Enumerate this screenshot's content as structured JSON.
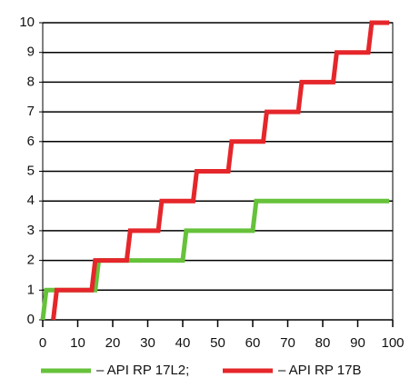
{
  "chart_data": {
    "type": "line",
    "series": [
      {
        "name": "– API RP 17L2;",
        "color": "#66c23a",
        "x": [
          0,
          1,
          15,
          16,
          40,
          41,
          60,
          61,
          99
        ],
        "values": [
          0,
          1,
          1,
          2,
          2,
          3,
          3,
          4,
          4
        ]
      },
      {
        "name": "– API RP 17B",
        "color": "#e5262a",
        "x": [
          3,
          4,
          14,
          15,
          24,
          25,
          33,
          34,
          43,
          44,
          53,
          54,
          63,
          64,
          73,
          74,
          83,
          84,
          93,
          94,
          99
        ],
        "values": [
          0,
          1,
          1,
          2,
          2,
          3,
          3,
          4,
          4,
          5,
          5,
          6,
          6,
          7,
          7,
          8,
          8,
          9,
          9,
          10,
          10
        ]
      }
    ],
    "xlim": [
      0,
      100
    ],
    "xticks": [
      0,
      10,
      20,
      30,
      40,
      50,
      60,
      70,
      80,
      90,
      100
    ],
    "ylim": [
      0,
      10
    ],
    "yticks": [
      0,
      1,
      2,
      3,
      4,
      5,
      6,
      7,
      8,
      9,
      10
    ],
    "grid": true,
    "legend": "bottom"
  }
}
